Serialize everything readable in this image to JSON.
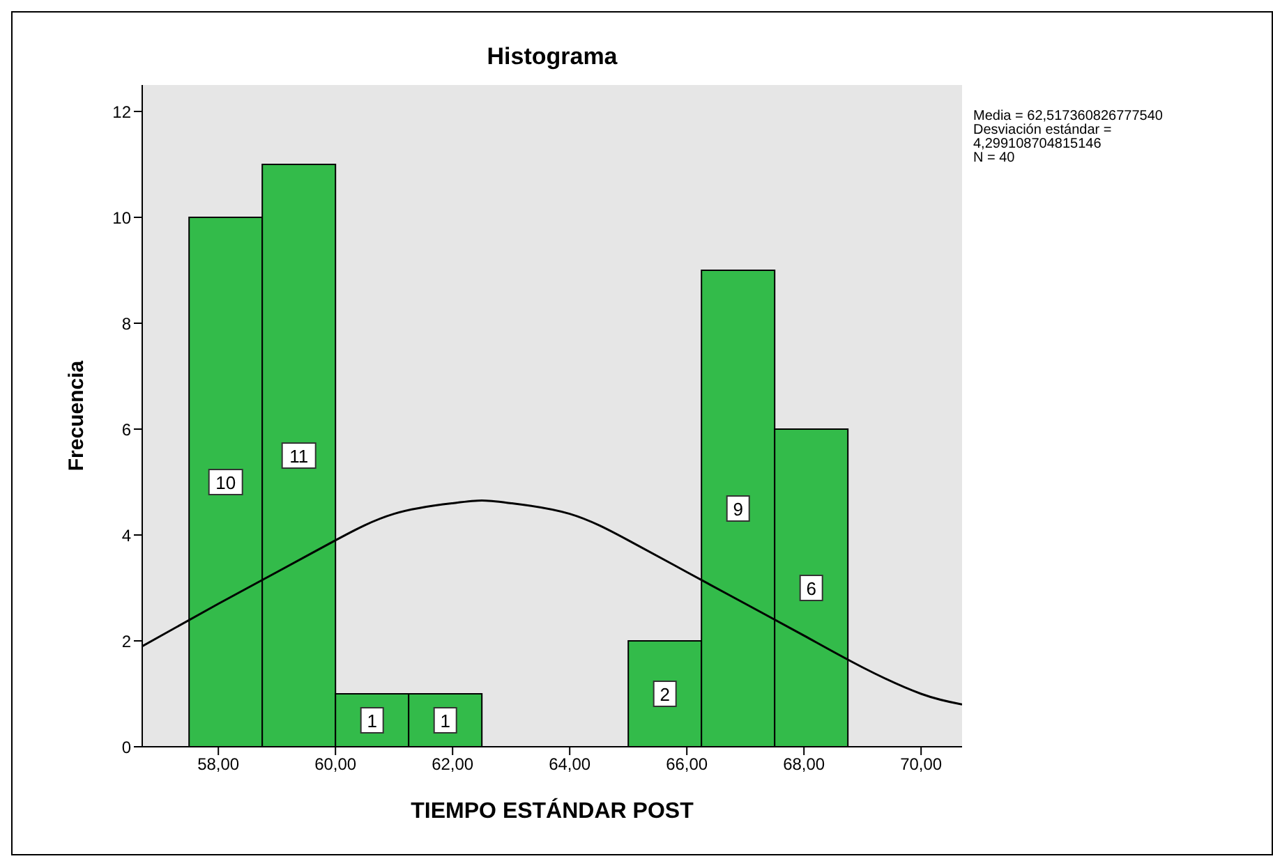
{
  "chart_data": {
    "type": "histogram",
    "title": "Histograma",
    "xlabel": "TIEMPO ESTÁNDAR POST",
    "ylabel": "Frecuencia",
    "bins": [
      57.5,
      58.75,
      60,
      61.25,
      62.5,
      63.75,
      65,
      66.25,
      67.5,
      68.75
    ],
    "values": [
      10,
      11,
      1,
      1,
      0,
      0,
      2,
      9,
      6
    ],
    "color": "#33bb4a",
    "value_labels": [
      "10",
      "11",
      "1",
      "1",
      null,
      null,
      "2",
      "9",
      "6"
    ],
    "series": [
      {
        "type": "line",
        "color": "#000000",
        "x": [
          56.7,
          58,
          59,
          60,
          61,
          62,
          62.5,
          63,
          64,
          65,
          66,
          67,
          68,
          69,
          70,
          70.7
        ],
        "values": [
          1.9,
          2.7,
          3.3,
          3.9,
          4.4,
          4.6,
          4.65,
          4.6,
          4.4,
          3.9,
          3.3,
          2.7,
          2.1,
          1.5,
          1.0,
          0.8
        ]
      }
    ],
    "xlim": [
      56.7,
      70.7
    ],
    "xticks": [
      {
        "value": 58,
        "label": "58,00"
      },
      {
        "value": 60,
        "label": "60,00"
      },
      {
        "value": 62,
        "label": "62,00"
      },
      {
        "value": 64,
        "label": "64,00"
      },
      {
        "value": 66,
        "label": "66,00"
      },
      {
        "value": 68,
        "label": "68,00"
      },
      {
        "value": 70,
        "label": "70,00"
      }
    ],
    "ylim": [
      0,
      12.5
    ],
    "yticks": [
      0,
      2,
      4,
      6,
      8,
      10,
      12
    ],
    "grid": false,
    "annotations": [
      "Media = 62,517360826777540",
      "Desviación estándar = 4,299108704815146",
      "N = 40"
    ]
  }
}
